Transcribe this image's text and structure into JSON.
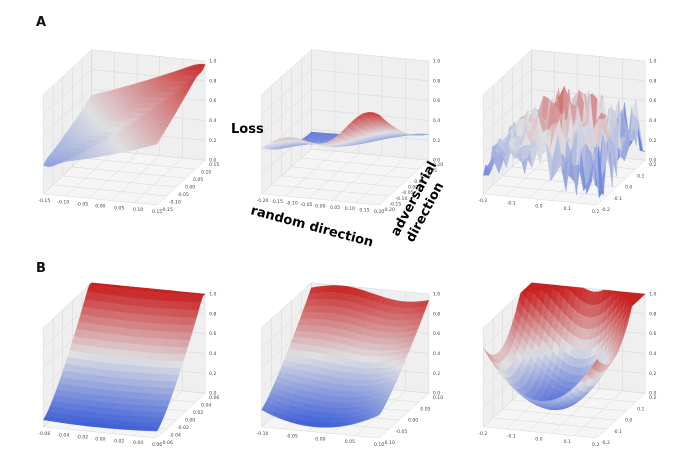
{
  "figure": {
    "panel_letters": [
      "A",
      "B"
    ],
    "annotations": {
      "z_label": "Loss",
      "x_label": "random direction",
      "y_label_line1": "adversarial",
      "y_label_line2": "direction"
    }
  },
  "colors": {
    "low": "#2b4fd6",
    "mid": "#dfe0e3",
    "high": "#c81f1f",
    "pane": "#f3f3f3",
    "grid": "#d6d6d6"
  },
  "chart_data": [
    {
      "id": "A1",
      "type": "surface3d",
      "zlim": [
        0,
        1
      ],
      "z_ticks": [
        "0.0",
        "0.2",
        "0.4",
        "0.6",
        "0.8",
        "1.0"
      ],
      "x_ticks": [
        "-0.15",
        "-0.10",
        "-0.05",
        "0.00",
        "0.05",
        "0.10",
        "0.15"
      ],
      "y_ticks": [
        "-0.15",
        "-0.10",
        "-0.05",
        "0.00",
        "0.05",
        "0.10",
        "0.15"
      ],
      "surface": "ridge",
      "z_range_shown": [
        0.2,
        1.0
      ]
    },
    {
      "id": "A2",
      "type": "surface3d",
      "zlim": [
        0,
        1
      ],
      "z_ticks": [
        "0.0",
        "0.2",
        "0.4",
        "0.6",
        "0.8",
        "1.0"
      ],
      "x_ticks": [
        "-0.20",
        "-0.15",
        "-0.10",
        "-0.05",
        "0.00",
        "0.05",
        "0.10",
        "0.15",
        "0.20"
      ],
      "y_ticks": [
        "-0.20",
        "-0.15",
        "-0.10",
        "-0.05",
        "0.00",
        "0.05",
        "0.10",
        "0.15",
        "0.20"
      ],
      "surface": "rising",
      "z_range_shown": [
        0.1,
        1.0
      ]
    },
    {
      "id": "A3",
      "type": "surface3d",
      "zlim": [
        0,
        1
      ],
      "z_ticks": [
        "0.0",
        "0.2",
        "0.4",
        "0.6",
        "0.8",
        "1.0"
      ],
      "x_ticks": [
        "-0.2",
        "-0.1",
        "0.0",
        "0.1",
        "0.2"
      ],
      "y_ticks": [
        "-0.2",
        "-0.1",
        "0.0",
        "0.1",
        "0.2"
      ],
      "surface": "rugged",
      "z_range_shown": [
        0.0,
        1.0
      ]
    },
    {
      "id": "B1",
      "type": "surface3d",
      "zlim": [
        0,
        1
      ],
      "z_ticks": [
        "0.0",
        "0.2",
        "0.4",
        "0.6",
        "0.8",
        "1.0"
      ],
      "x_ticks": [
        "-0.06",
        "-0.04",
        "-0.02",
        "0.00",
        "0.02",
        "0.04",
        "0.06"
      ],
      "y_ticks": [
        "-0.06",
        "-0.04",
        "-0.02",
        "0.00",
        "0.02",
        "0.04",
        "0.06"
      ],
      "surface": "valley",
      "z_range_shown": [
        0.0,
        1.0
      ]
    },
    {
      "id": "B2",
      "type": "surface3d",
      "zlim": [
        0,
        1
      ],
      "z_ticks": [
        "0.0",
        "0.2",
        "0.4",
        "0.6",
        "0.8",
        "1.0"
      ],
      "x_ticks": [
        "-0.10",
        "-0.05",
        "0.00",
        "0.05",
        "0.10"
      ],
      "y_ticks": [
        "-0.10",
        "-0.05",
        "0.00",
        "0.05",
        "0.10"
      ],
      "surface": "bowl",
      "z_range_shown": [
        0.0,
        1.0
      ]
    },
    {
      "id": "B3",
      "type": "surface3d",
      "zlim": [
        0,
        1
      ],
      "z_ticks": [
        "0.0",
        "0.2",
        "0.4",
        "0.6",
        "0.8",
        "1.0"
      ],
      "x_ticks": [
        "-0.2",
        "-0.1",
        "0.0",
        "0.1",
        "0.2"
      ],
      "y_ticks": [
        "-0.2",
        "-0.1",
        "0.0",
        "0.1",
        "0.2"
      ],
      "surface": "basin",
      "z_range_shown": [
        0.0,
        1.0
      ]
    }
  ]
}
